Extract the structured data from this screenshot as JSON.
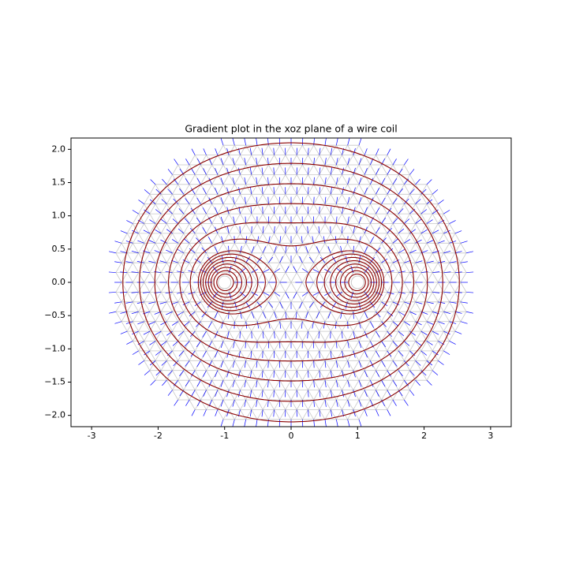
{
  "chart_data": {
    "type": "contour",
    "title": "Gradient plot in the xoz plane of a wire coil",
    "xlim": [
      -3.31,
      3.31
    ],
    "ylim": [
      -2.17,
      2.17
    ],
    "xticks": [
      -3,
      -2,
      -1,
      0,
      1,
      2,
      3
    ],
    "yticks": [
      {
        "value": -2,
        "label": "−2.0"
      },
      {
        "value": -1.5,
        "label": "−1.5"
      },
      {
        "value": -1,
        "label": "−1.0"
      },
      {
        "value": -0.5,
        "label": "−0.5"
      },
      {
        "value": 0,
        "label": "0.0"
      },
      {
        "value": 0.5,
        "label": "0.5"
      },
      {
        "value": 1,
        "label": "1.0"
      },
      {
        "value": 1.5,
        "label": "1.5"
      },
      {
        "value": 2,
        "label": "2.0"
      }
    ],
    "foci": [
      -1,
      1
    ],
    "levels": [
      0.15,
      0.25,
      0.35,
      0.45,
      0.55,
      0.65,
      0.75,
      0.85,
      0.95,
      1.3,
      1.8,
      2.4,
      3.2,
      4.2,
      5.4
    ],
    "color": "#8b0000",
    "arrow_color": "#0000ff",
    "mesh_color": "#c8c8c8"
  }
}
